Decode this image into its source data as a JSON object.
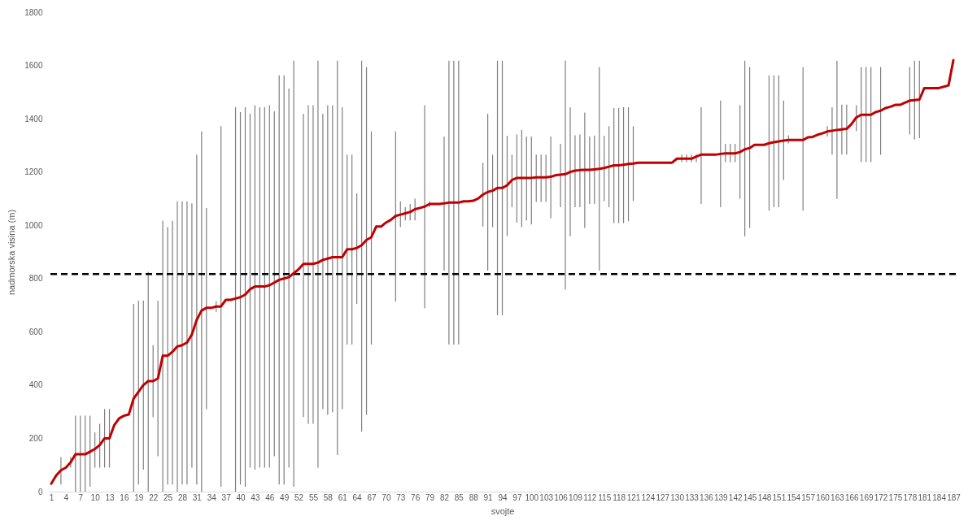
{
  "chart_data": {
    "type": "line",
    "xlabel": "svojte",
    "ylabel": "nadmorska visina (m)",
    "categories": [
      "1",
      null,
      null,
      "4",
      null,
      null,
      "7",
      null,
      null,
      "10",
      null,
      null,
      "13",
      null,
      null,
      "16",
      null,
      null,
      "19",
      null,
      null,
      "22",
      null,
      null,
      "25",
      null,
      null,
      "28",
      null,
      null,
      "31",
      null,
      null,
      "34",
      null,
      null,
      "37",
      null,
      null,
      "40",
      null,
      null,
      "43",
      null,
      null,
      "46",
      null,
      null,
      "49",
      null,
      null,
      "52",
      null,
      null,
      "55",
      null,
      null,
      "58",
      null,
      null,
      "61",
      null,
      null,
      "64",
      null,
      null,
      "67",
      null,
      null,
      "70",
      null,
      null,
      "73",
      null,
      null,
      "76",
      null,
      null,
      "79",
      null,
      null,
      "82",
      null,
      null,
      "85",
      null,
      null,
      "88",
      null,
      null,
      "91",
      null,
      null,
      "94",
      null,
      null,
      "97",
      null,
      null,
      "100",
      null,
      null,
      "103",
      null,
      null,
      "106",
      null,
      null,
      "109",
      null,
      null,
      "112",
      null,
      null,
      "115",
      null,
      null,
      "118",
      null,
      null,
      "121",
      null,
      null,
      "124",
      null,
      null,
      "127",
      null,
      null,
      "130",
      null,
      null,
      "133",
      null,
      null,
      "136",
      null,
      null,
      "139",
      null,
      null,
      "142",
      null,
      null,
      "145",
      null,
      null,
      "148",
      null,
      null,
      "151",
      null,
      null,
      "154",
      null,
      null,
      "157",
      null,
      null,
      "160",
      null,
      null,
      "163",
      null,
      null,
      "166",
      null,
      null,
      "169",
      null,
      null,
      "172",
      null,
      null,
      "175",
      null,
      null,
      "178",
      null,
      null,
      "181",
      null,
      null,
      "184",
      null,
      null,
      "187"
    ],
    "series": [
      {
        "color": "#c00000",
        "values": [
          30,
          60,
          80,
          90,
          110,
          140,
          140,
          140,
          150,
          160,
          175,
          200,
          200,
          250,
          275,
          285,
          290,
          350,
          375,
          400,
          415,
          415,
          425,
          510,
          510,
          525,
          545,
          550,
          560,
          590,
          645,
          680,
          690,
          690,
          695,
          695,
          720,
          720,
          725,
          730,
          740,
          760,
          770,
          770,
          770,
          775,
          785,
          795,
          800,
          805,
          820,
          835,
          855,
          855,
          855,
          860,
          870,
          875,
          880,
          880,
          880,
          910,
          910,
          915,
          925,
          945,
          955,
          995,
          995,
          1010,
          1020,
          1035,
          1040,
          1045,
          1050,
          1060,
          1065,
          1070,
          1080,
          1080,
          1080,
          1082,
          1085,
          1085,
          1085,
          1090,
          1090,
          1092,
          1100,
          1115,
          1125,
          1130,
          1140,
          1140,
          1150,
          1170,
          1178,
          1178,
          1178,
          1178,
          1180,
          1180,
          1180,
          1182,
          1188,
          1190,
          1192,
          1200,
          1205,
          1207,
          1208,
          1208,
          1210,
          1212,
          1215,
          1220,
          1225,
          1225,
          1227,
          1230,
          1232,
          1235,
          1235,
          1235,
          1235,
          1235,
          1235,
          1235,
          1235,
          1250,
          1250,
          1250,
          1250,
          1258,
          1265,
          1265,
          1265,
          1265,
          1268,
          1270,
          1270,
          1270,
          1275,
          1285,
          1290,
          1302,
          1302,
          1302,
          1308,
          1312,
          1315,
          1318,
          1320,
          1320,
          1320,
          1320,
          1330,
          1332,
          1340,
          1345,
          1352,
          1355,
          1358,
          1360,
          1362,
          1380,
          1405,
          1415,
          1415,
          1415,
          1425,
          1430,
          1440,
          1445,
          1452,
          1452,
          1460,
          1468,
          1470,
          1472,
          1515,
          1515,
          1515,
          1515,
          1520,
          1525,
          1620
        ],
        "errors": [
          null,
          null,
          [
            27,
            130
          ],
          null,
          [
            90,
            130
          ],
          [
            0,
            285
          ],
          [
            0,
            285
          ],
          [
            0,
            285
          ],
          [
            18,
            285
          ],
          [
            90,
            222
          ],
          [
            90,
            255
          ],
          [
            90,
            310
          ],
          [
            90,
            310
          ],
          null,
          null,
          null,
          null,
          [
            0,
            705
          ],
          [
            27,
            717
          ],
          [
            82,
            717
          ],
          [
            0,
            825
          ],
          [
            280,
            550
          ],
          [
            133,
            717
          ],
          [
            0,
            1017
          ],
          [
            27,
            993
          ],
          [
            27,
            1017
          ],
          [
            0,
            1090
          ],
          [
            27,
            1090
          ],
          [
            27,
            1090
          ],
          [
            90,
            1082
          ],
          [
            27,
            1265
          ],
          [
            0,
            1352
          ],
          [
            310,
            1065
          ],
          null,
          [
            675,
            715
          ],
          [
            18,
            1372
          ],
          null,
          null,
          [
            0,
            1443
          ],
          [
            27,
            1425
          ],
          [
            18,
            1443
          ],
          [
            90,
            1419
          ],
          [
            82,
            1451
          ],
          [
            90,
            1443
          ],
          [
            90,
            1443
          ],
          [
            90,
            1451
          ],
          [
            133,
            1428
          ],
          [
            27,
            1563
          ],
          [
            27,
            1563
          ],
          [
            90,
            1513
          ],
          [
            18,
            1618
          ],
          null,
          [
            280,
            1419
          ],
          [
            255,
            1451
          ],
          [
            255,
            1451
          ],
          [
            90,
            1618
          ],
          [
            310,
            1419
          ],
          [
            288,
            1451
          ],
          [
            298,
            1451
          ],
          [
            137,
            1618
          ],
          [
            310,
            1443
          ],
          [
            552,
            1265
          ],
          [
            552,
            1265
          ],
          [
            705,
            1120
          ],
          [
            225,
            1618
          ],
          [
            288,
            1594
          ],
          [
            552,
            1352
          ],
          null,
          null,
          null,
          null,
          [
            714,
            1352
          ],
          [
            993,
            1090
          ],
          [
            1018,
            1068
          ],
          [
            1018,
            1080
          ],
          [
            1018,
            1100
          ],
          null,
          [
            689,
            1451
          ],
          [
            1068,
            1090
          ],
          null,
          null,
          [
            830,
            1333
          ],
          [
            552,
            1618
          ],
          [
            552,
            1618
          ],
          [
            552,
            1618
          ],
          null,
          null,
          null,
          null,
          [
            995,
            1235
          ],
          [
            830,
            1419
          ],
          [
            993,
            1265
          ],
          [
            662,
            1618
          ],
          [
            662,
            1618
          ],
          [
            959,
            1336
          ],
          [
            1068,
            1265
          ],
          [
            1010,
            1341
          ],
          [
            993,
            1358
          ],
          [
            1018,
            1333
          ],
          [
            1003,
            1333
          ],
          [
            1088,
            1265
          ],
          [
            1088,
            1265
          ],
          [
            1088,
            1265
          ],
          [
            1026,
            1333
          ],
          null,
          [
            1068,
            1306
          ],
          [
            759,
            1618
          ],
          [
            959,
            1443
          ],
          [
            1068,
            1338
          ],
          [
            1068,
            1341
          ],
          [
            990,
            1423
          ],
          [
            1080,
            1333
          ],
          [
            1080,
            1336
          ],
          [
            830,
            1594
          ],
          [
            1091,
            1336
          ],
          [
            1068,
            1372
          ],
          [
            1008,
            1440
          ],
          [
            1008,
            1440
          ],
          [
            1008,
            1443
          ],
          [
            1015,
            1443
          ],
          [
            1091,
            1372
          ],
          null,
          null,
          null,
          null,
          null,
          null,
          null,
          null,
          null,
          [
            1237,
            1265
          ],
          [
            1237,
            1265
          ],
          [
            1237,
            1265
          ],
          [
            1237,
            1265
          ],
          [
            1080,
            1443
          ],
          null,
          null,
          null,
          [
            1068,
            1468
          ],
          [
            1237,
            1306
          ],
          [
            1237,
            1306
          ],
          [
            1237,
            1306
          ],
          [
            1100,
            1451
          ],
          [
            959,
            1618
          ],
          [
            990,
            1594
          ],
          null,
          null,
          null,
          [
            1055,
            1563
          ],
          [
            1068,
            1563
          ],
          [
            1068,
            1563
          ],
          [
            1170,
            1468
          ],
          [
            1307,
            1338
          ],
          null,
          null,
          [
            1055,
            1594
          ],
          null,
          null,
          null,
          null,
          [
            1333,
            1372
          ],
          [
            1265,
            1443
          ],
          [
            1099,
            1618
          ],
          [
            1265,
            1453
          ],
          [
            1265,
            1453
          ],
          null,
          [
            1354,
            1451
          ],
          [
            1237,
            1594
          ],
          [
            1237,
            1594
          ],
          [
            1237,
            1594
          ],
          null,
          [
            1265,
            1594
          ],
          null,
          null,
          null,
          null,
          null,
          [
            1341,
            1594
          ],
          [
            1322,
            1618
          ],
          [
            1327,
            1618
          ],
          null,
          null,
          null,
          null,
          null,
          null,
          null
        ]
      }
    ],
    "ylim": [
      0,
      1800
    ],
    "yticks": [
      0,
      200,
      400,
      600,
      800,
      1000,
      1200,
      1400,
      1600,
      1800
    ],
    "ref_lines": [
      {
        "axis": "y",
        "value": 817,
        "color": "#000000",
        "line_style": "dashed"
      }
    ],
    "grid": false,
    "legend": false,
    "marker": "none",
    "line_style": "solid"
  }
}
